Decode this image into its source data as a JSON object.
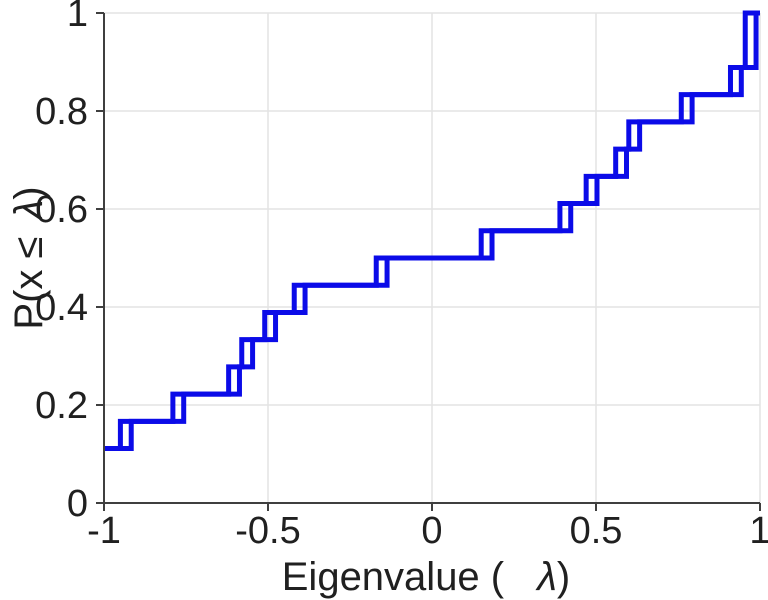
{
  "chart_data": {
    "type": "line",
    "subtype": "ecdf-stairs",
    "title": "",
    "xlabel_parts": {
      "pre": "Eigenvalue ( ",
      "lambda": "λ",
      "post": ")"
    },
    "ylabel_parts": {
      "pre": "P(x ≤ ",
      "lambda": "λ",
      "post": ")"
    },
    "xlim": [
      -1,
      1
    ],
    "ylim": [
      0,
      1
    ],
    "xticks": {
      "values": [
        -1,
        -0.5,
        0,
        0.5,
        1
      ],
      "labels": [
        "-1",
        "-0.5",
        "0",
        "0.5",
        "1"
      ]
    },
    "yticks": {
      "values": [
        0,
        0.2,
        0.4,
        0.6,
        0.8,
        1
      ],
      "labels": [
        "0",
        "0.2",
        "0.4",
        "0.6",
        "0.8",
        "1"
      ]
    },
    "grid": true,
    "legend": "none",
    "n_samples": 18,
    "start_probability": 0.1111,
    "steps": [
      {
        "eigenvalue": -0.95,
        "cumulative": 0.1667
      },
      {
        "eigenvalue": -0.79,
        "cumulative": 0.2222
      },
      {
        "eigenvalue": -0.62,
        "cumulative": 0.2778
      },
      {
        "eigenvalue": -0.58,
        "cumulative": 0.3333
      },
      {
        "eigenvalue": -0.51,
        "cumulative": 0.3889
      },
      {
        "eigenvalue": -0.42,
        "cumulative": 0.4444
      },
      {
        "eigenvalue": -0.17,
        "cumulative": 0.5
      },
      {
        "eigenvalue": 0.15,
        "cumulative": 0.5556
      },
      {
        "eigenvalue": 0.39,
        "cumulative": 0.6111
      },
      {
        "eigenvalue": 0.47,
        "cumulative": 0.6667
      },
      {
        "eigenvalue": 0.56,
        "cumulative": 0.7222
      },
      {
        "eigenvalue": 0.6,
        "cumulative": 0.7778
      },
      {
        "eigenvalue": 0.76,
        "cumulative": 0.8333
      },
      {
        "eigenvalue": 0.91,
        "cumulative": 0.8889
      },
      {
        "eigenvalue": 0.955,
        "cumulative": 1.0
      }
    ],
    "double_line_offset": 0.033,
    "colors": {
      "line": "#0b0be8",
      "axis": "#3f3f3f",
      "text": "#202020",
      "grid": "#e4e4e4",
      "background": "#ffffff"
    }
  }
}
